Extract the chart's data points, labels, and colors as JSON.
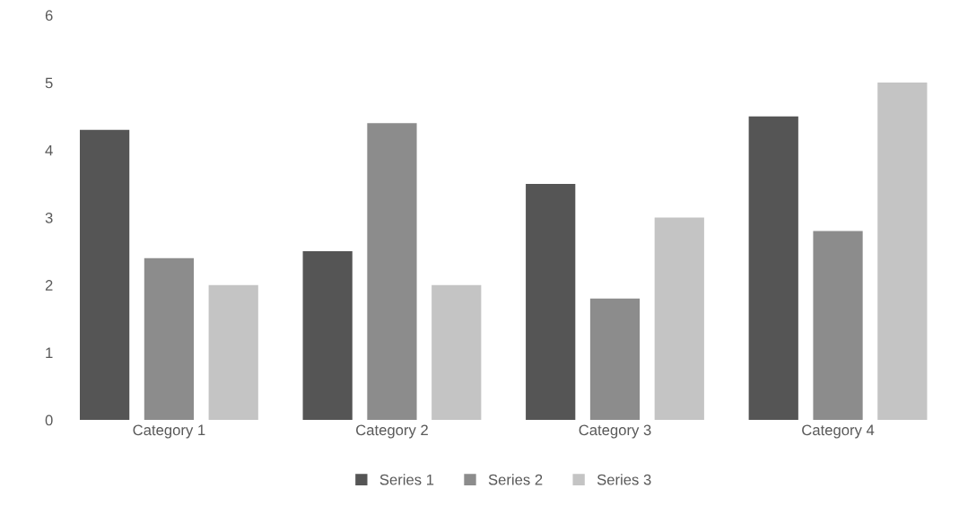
{
  "chart_data": {
    "type": "bar",
    "categories": [
      "Category 1",
      "Category 2",
      "Category 3",
      "Category 4"
    ],
    "series": [
      {
        "name": "Series 1",
        "color": "#555555",
        "values": [
          4.3,
          2.5,
          3.5,
          4.5
        ]
      },
      {
        "name": "Series 2",
        "color": "#8c8c8c",
        "values": [
          2.4,
          4.4,
          1.8,
          2.8
        ]
      },
      {
        "name": "Series 3",
        "color": "#c4c4c4",
        "values": [
          2,
          2,
          3,
          5
        ]
      }
    ],
    "ylim": [
      0,
      6
    ],
    "yticks": [
      0,
      1,
      2,
      3,
      4,
      5,
      6
    ],
    "grid": false,
    "legend": "bottom"
  }
}
